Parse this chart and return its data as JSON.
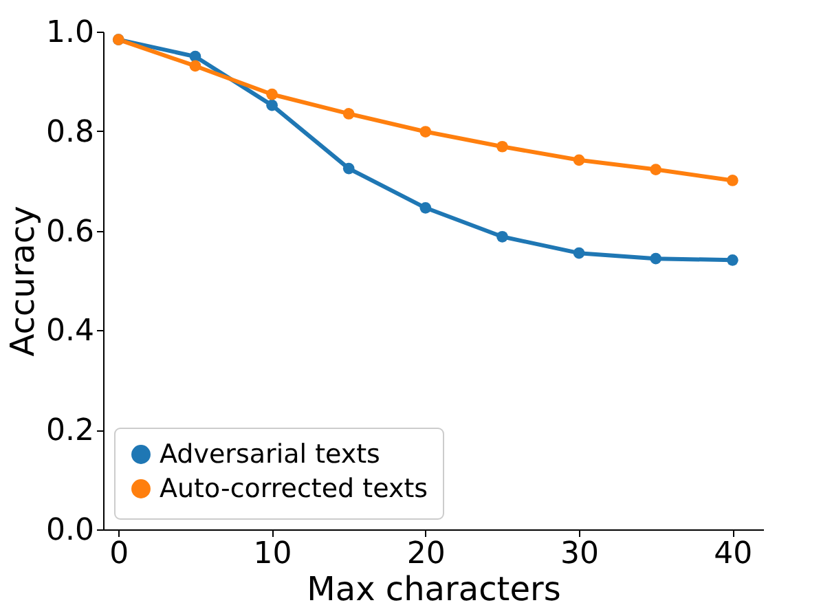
{
  "chart_data": {
    "type": "line",
    "xlabel": "Max characters",
    "ylabel": "Accuracy",
    "x": [
      0,
      5,
      10,
      15,
      20,
      25,
      30,
      35,
      40
    ],
    "series": [
      {
        "name": "Adversarial texts",
        "color": "#1f77b4",
        "values": [
          0.984,
          0.95,
          0.852,
          0.725,
          0.646,
          0.588,
          0.555,
          0.544,
          0.541
        ]
      },
      {
        "name": "Auto-corrected texts",
        "color": "#ff7f0e",
        "values": [
          0.984,
          0.931,
          0.874,
          0.835,
          0.799,
          0.769,
          0.742,
          0.723,
          0.701
        ]
      }
    ],
    "xlim": [
      -1,
      42
    ],
    "ylim": [
      0,
      1
    ],
    "xticks": [
      0,
      10,
      20,
      30,
      40
    ],
    "yticks": [
      {
        "value": 0,
        "label": "0.0"
      },
      0.2,
      0.4,
      0.6,
      0.8,
      {
        "value": 1,
        "label": "1.0"
      }
    ],
    "legend": "bottom left",
    "marker": "circle",
    "line_style": "solid",
    "grid": false
  }
}
